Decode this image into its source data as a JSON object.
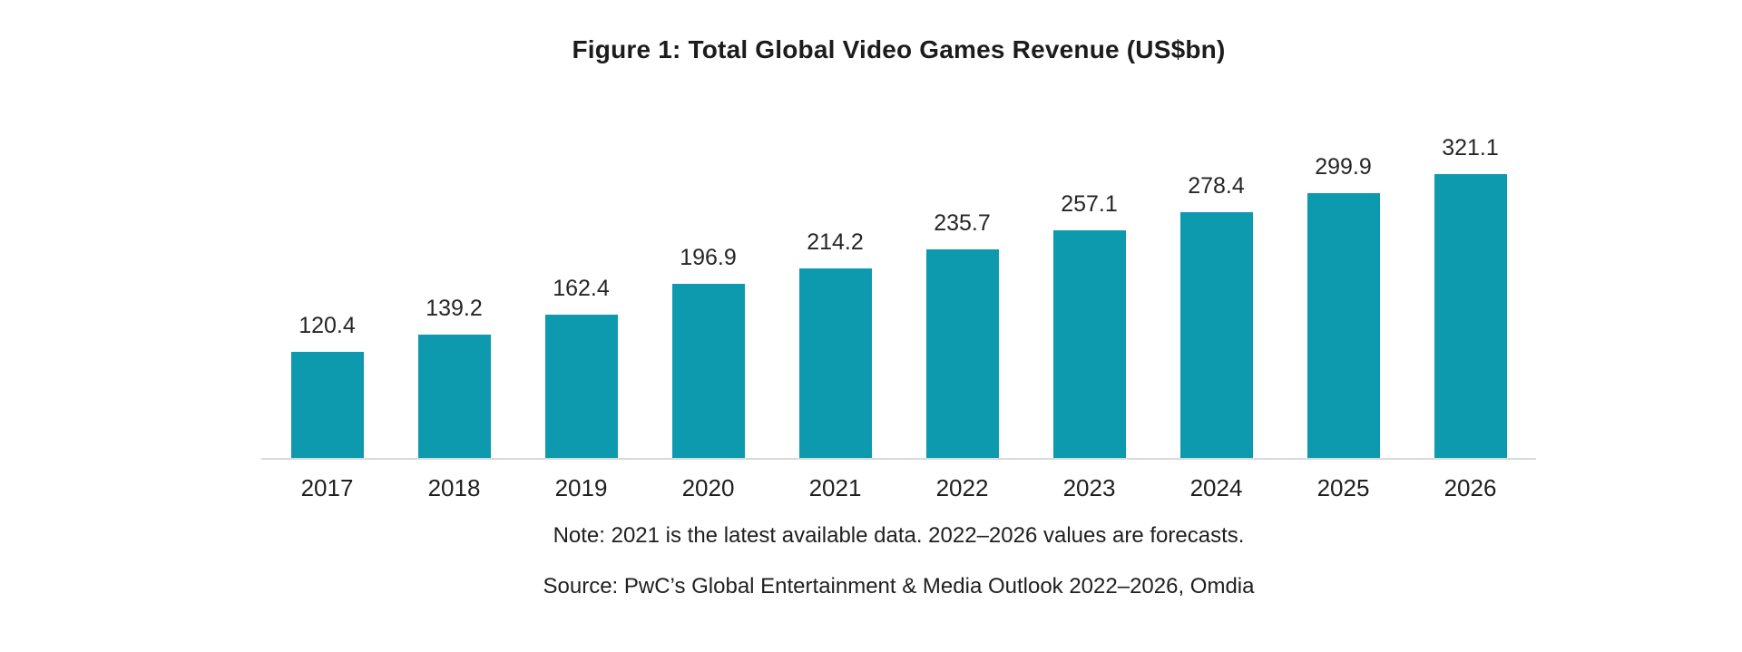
{
  "chart_data": {
    "type": "bar",
    "title": "Figure 1: Total Global Video Games Revenue (US$bn)",
    "categories": [
      "2017",
      "2018",
      "2019",
      "2020",
      "2021",
      "2022",
      "2023",
      "2024",
      "2025",
      "2026"
    ],
    "values": [
      120.4,
      139.2,
      162.4,
      196.9,
      214.2,
      235.7,
      257.1,
      278.4,
      299.9,
      321.1
    ],
    "xlabel": "",
    "ylabel": "",
    "ylim": [
      0,
      330
    ],
    "grid": false,
    "legend_position": "none",
    "data_labels": true,
    "bar_color": "#0D9AAE",
    "axis_line_color": "#D9D9D9",
    "note": "Note: 2021 is the latest available data. 2022–2026 values are forecasts.",
    "source": "Source: PwC’s Global Entertainment & Media Outlook 2022–2026, Omdia"
  }
}
